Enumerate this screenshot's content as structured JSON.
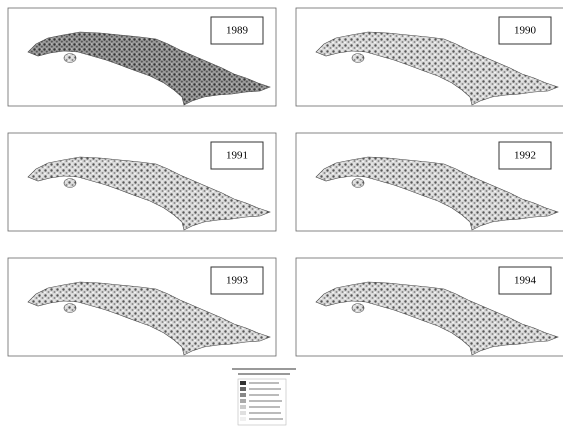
{
  "panels": [
    {
      "year": "1989"
    },
    {
      "year": "1990"
    },
    {
      "year": "1991"
    },
    {
      "year": "1992"
    },
    {
      "year": "1993"
    },
    {
      "year": "1994"
    }
  ]
}
